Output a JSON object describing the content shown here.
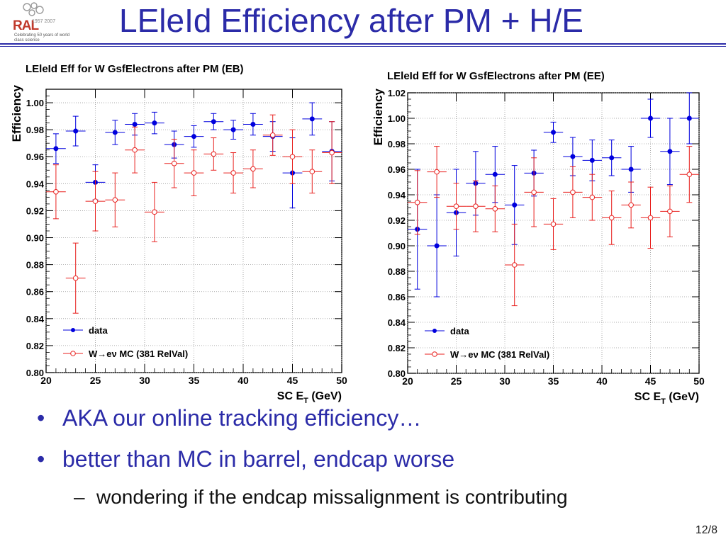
{
  "slide": {
    "title": "LEleId Efficiency after PM + H/E",
    "page_number": "12/8",
    "logo": {
      "text": "RAL",
      "years": "1957 2007",
      "tagline": "Celebrating 50 years of world class science"
    },
    "bullets": [
      "AKA our online tracking efficiency…",
      "better than MC in barrel, endcap worse"
    ],
    "sub_bullets": [
      "wondering if the endcap missalignment is contributing"
    ],
    "colors": {
      "title": "#2b2ba8",
      "data": "#0000dd",
      "mc": "#e8211f"
    }
  },
  "chart_data": [
    {
      "type": "scatter",
      "title": "LEleId Eff for W GsfElectrons after PM (EB)",
      "xlabel": "SC E",
      "xlabel_sub": "T",
      "xlabel_unit": " (GeV)",
      "ylabel": "Efficiency",
      "xlim": [
        20,
        50
      ],
      "ylim": [
        0.8,
        1.01
      ],
      "xticks": [
        20,
        25,
        30,
        35,
        40,
        45,
        50
      ],
      "yticks": [
        0.8,
        0.82,
        0.84,
        0.86,
        0.88,
        0.9,
        0.92,
        0.94,
        0.96,
        0.98,
        1.0
      ],
      "grid": true,
      "legend": "bottom-left",
      "legend_entries": [
        "data",
        "W→eν MC (381 RelVal)"
      ],
      "series": [
        {
          "name": "data",
          "marker": "filled-circle",
          "color": "#0000dd",
          "x": [
            21,
            23,
            25,
            27,
            29,
            31,
            33,
            35,
            37,
            39,
            41,
            43,
            45,
            47,
            49
          ],
          "y": [
            0.966,
            0.979,
            0.941,
            0.978,
            0.984,
            0.985,
            0.969,
            0.975,
            0.986,
            0.98,
            0.984,
            0.975,
            0.948,
            0.988,
            0.964
          ],
          "err": [
            0.011,
            0.011,
            0.013,
            0.009,
            0.008,
            0.008,
            0.01,
            0.008,
            0.006,
            0.007,
            0.008,
            0.011,
            0.026,
            0.012,
            0.022
          ]
        },
        {
          "name": "W→eν MC (381 RelVal)",
          "marker": "open-circle",
          "color": "#e8211f",
          "x": [
            21,
            23,
            25,
            27,
            29,
            31,
            33,
            35,
            37,
            39,
            41,
            43,
            45,
            47,
            49
          ],
          "y": [
            0.934,
            0.87,
            0.927,
            0.928,
            0.965,
            0.919,
            0.955,
            0.948,
            0.962,
            0.948,
            0.951,
            0.976,
            0.96,
            0.949,
            0.963
          ],
          "err": [
            0.02,
            0.026,
            0.022,
            0.02,
            0.017,
            0.022,
            0.018,
            0.017,
            0.012,
            0.015,
            0.014,
            0.015,
            0.02,
            0.016,
            0.023
          ]
        }
      ]
    },
    {
      "type": "scatter",
      "title": "LEleId Eff for W GsfElectrons after PM (EE)",
      "xlabel": "SC E",
      "xlabel_sub": "T",
      "xlabel_unit": " (GeV)",
      "ylabel": "Efficiency",
      "xlim": [
        20,
        50
      ],
      "ylim": [
        0.8,
        1.02
      ],
      "xticks": [
        20,
        25,
        30,
        35,
        40,
        45,
        50
      ],
      "yticks": [
        0.8,
        0.82,
        0.84,
        0.86,
        0.88,
        0.9,
        0.92,
        0.94,
        0.96,
        0.98,
        1.0,
        1.02
      ],
      "grid": true,
      "legend": "bottom-left",
      "legend_entries": [
        "data",
        "W→eν MC (381 RelVal)"
      ],
      "series": [
        {
          "name": "data",
          "marker": "filled-circle",
          "color": "#0000dd",
          "x": [
            21,
            23,
            25,
            27,
            29,
            31,
            33,
            35,
            37,
            39,
            41,
            43,
            45,
            47,
            49
          ],
          "y": [
            0.913,
            0.9,
            0.926,
            0.949,
            0.956,
            0.932,
            0.957,
            0.989,
            0.97,
            0.967,
            0.969,
            0.96,
            1.0,
            0.974,
            1.0
          ],
          "err": [
            0.047,
            0.04,
            0.034,
            0.025,
            0.022,
            0.031,
            0.018,
            0.008,
            0.015,
            0.016,
            0.014,
            0.018,
            0.015,
            0.026,
            0.02
          ]
        },
        {
          "name": "W→eν MC (381 RelVal)",
          "marker": "open-circle",
          "color": "#e8211f",
          "x": [
            21,
            23,
            25,
            27,
            29,
            31,
            33,
            35,
            37,
            39,
            41,
            43,
            45,
            47,
            49
          ],
          "y": [
            0.934,
            0.958,
            0.931,
            0.931,
            0.929,
            0.885,
            0.942,
            0.917,
            0.942,
            0.938,
            0.922,
            0.932,
            0.922,
            0.927,
            0.956
          ],
          "err": [
            0.025,
            0.02,
            0.018,
            0.02,
            0.018,
            0.032,
            0.027,
            0.02,
            0.02,
            0.018,
            0.021,
            0.018,
            0.024,
            0.02,
            0.022
          ]
        }
      ]
    }
  ]
}
